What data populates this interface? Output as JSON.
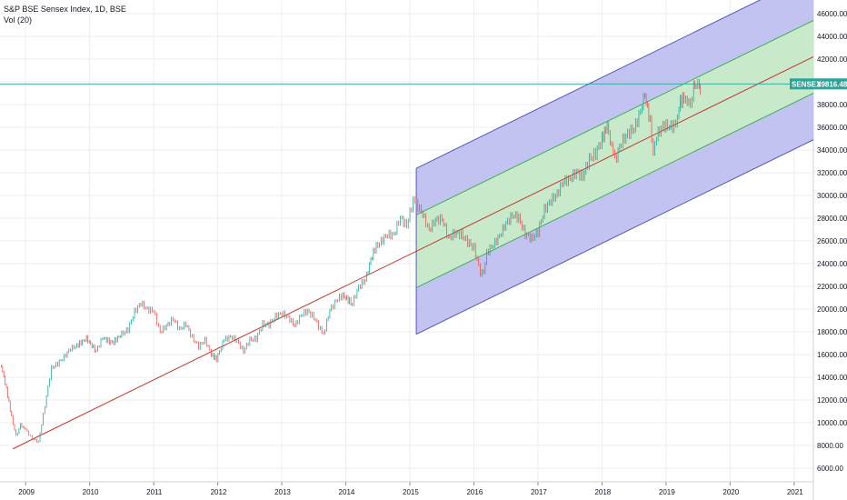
{
  "legend": {
    "title": "S&P BSE Sensex Index, 1D, BSE",
    "indicator": "Vol (20)"
  },
  "price_tag": {
    "symbol": "SENSEX",
    "value": "39816.48",
    "color": "#26a69a"
  },
  "colors": {
    "up": "#26a69a",
    "down": "#ef5350",
    "regression": "#c0392b",
    "outer_channel_fill": "#b8b8ee",
    "outer_channel_line": "#5555bb",
    "inner_channel_fill": "#c8ecc8",
    "inner_channel_line": "#3fae5a",
    "grid": "#eeeeee"
  },
  "chart_data": {
    "type": "line",
    "title": "S&P BSE Sensex Index, 1D, BSE",
    "xlabel": "",
    "ylabel": "",
    "x_ticks": [
      "2009",
      "2010",
      "2011",
      "2012",
      "2013",
      "2014",
      "2015",
      "2016",
      "2017",
      "2018",
      "2019",
      "2020",
      "2021"
    ],
    "y_ticks": [
      "6000.00",
      "8000.00",
      "10000.00",
      "12000.00",
      "14000.00",
      "16000.00",
      "18000.00",
      "20000.00",
      "22000.00",
      "24000.00",
      "26000.00",
      "28000.00",
      "30000.00",
      "32000.00",
      "34000.00",
      "36000.00",
      "38000.00",
      "40000.00",
      "42000.00",
      "44000.00",
      "46000.00"
    ],
    "ylim": [
      4800,
      47200
    ],
    "xlim": [
      2008.6,
      2021.3
    ],
    "grid": true,
    "series": [
      {
        "values": [
          [
            2008.62,
            15000
          ],
          [
            2008.7,
            13000
          ],
          [
            2008.78,
            10500
          ],
          [
            2008.85,
            8800
          ],
          [
            2008.92,
            9800
          ],
          [
            2009.0,
            9400
          ],
          [
            2009.1,
            8600
          ],
          [
            2009.2,
            8300
          ],
          [
            2009.3,
            11500
          ],
          [
            2009.4,
            14800
          ],
          [
            2009.5,
            15200
          ],
          [
            2009.6,
            15800
          ],
          [
            2009.7,
            16500
          ],
          [
            2009.8,
            16800
          ],
          [
            2009.95,
            17400
          ],
          [
            2010.1,
            16300
          ],
          [
            2010.2,
            17500
          ],
          [
            2010.35,
            17000
          ],
          [
            2010.5,
            17800
          ],
          [
            2010.6,
            18200
          ],
          [
            2010.7,
            19800
          ],
          [
            2010.8,
            20500
          ],
          [
            2010.9,
            20000
          ],
          [
            2011.0,
            19800
          ],
          [
            2011.1,
            18000
          ],
          [
            2011.2,
            18500
          ],
          [
            2011.3,
            19200
          ],
          [
            2011.4,
            18200
          ],
          [
            2011.5,
            18700
          ],
          [
            2011.6,
            17500
          ],
          [
            2011.7,
            16700
          ],
          [
            2011.8,
            17300
          ],
          [
            2011.9,
            16000
          ],
          [
            2011.98,
            15600
          ],
          [
            2012.1,
            17300
          ],
          [
            2012.2,
            17600
          ],
          [
            2012.3,
            17200
          ],
          [
            2012.4,
            16300
          ],
          [
            2012.5,
            17300
          ],
          [
            2012.6,
            17400
          ],
          [
            2012.7,
            18700
          ],
          [
            2012.8,
            18600
          ],
          [
            2012.9,
            19400
          ],
          [
            2013.0,
            19600
          ],
          [
            2013.1,
            19300
          ],
          [
            2013.2,
            18500
          ],
          [
            2013.3,
            19500
          ],
          [
            2013.4,
            19800
          ],
          [
            2013.5,
            19300
          ],
          [
            2013.6,
            18200
          ],
          [
            2013.65,
            17800
          ],
          [
            2013.75,
            19900
          ],
          [
            2013.85,
            20800
          ],
          [
            2013.95,
            21200
          ],
          [
            2014.1,
            20500
          ],
          [
            2014.2,
            22000
          ],
          [
            2014.3,
            22500
          ],
          [
            2014.37,
            24000
          ],
          [
            2014.45,
            25300
          ],
          [
            2014.55,
            26000
          ],
          [
            2014.65,
            26500
          ],
          [
            2014.75,
            26600
          ],
          [
            2014.85,
            28000
          ],
          [
            2014.95,
            27400
          ],
          [
            2015.05,
            29500
          ],
          [
            2015.1,
            29300
          ],
          [
            2015.2,
            28300
          ],
          [
            2015.3,
            27000
          ],
          [
            2015.4,
            27800
          ],
          [
            2015.5,
            28000
          ],
          [
            2015.6,
            26200
          ],
          [
            2015.7,
            26700
          ],
          [
            2015.8,
            26600
          ],
          [
            2015.9,
            25900
          ],
          [
            2016.0,
            25400
          ],
          [
            2016.1,
            23200
          ],
          [
            2016.15,
            23000
          ],
          [
            2016.2,
            25000
          ],
          [
            2016.3,
            25600
          ],
          [
            2016.4,
            26500
          ],
          [
            2016.5,
            27500
          ],
          [
            2016.6,
            28300
          ],
          [
            2016.7,
            28000
          ],
          [
            2016.8,
            26600
          ],
          [
            2016.9,
            26200
          ],
          [
            2017.0,
            26800
          ],
          [
            2017.1,
            28800
          ],
          [
            2017.2,
            29500
          ],
          [
            2017.3,
            30200
          ],
          [
            2017.4,
            31200
          ],
          [
            2017.5,
            31500
          ],
          [
            2017.6,
            32000
          ],
          [
            2017.7,
            31700
          ],
          [
            2017.8,
            33200
          ],
          [
            2017.9,
            33700
          ],
          [
            2018.0,
            35000
          ],
          [
            2018.08,
            36100
          ],
          [
            2018.15,
            34300
          ],
          [
            2018.2,
            33100
          ],
          [
            2018.3,
            34600
          ],
          [
            2018.4,
            35500
          ],
          [
            2018.5,
            35800
          ],
          [
            2018.6,
            37500
          ],
          [
            2018.67,
            38800
          ],
          [
            2018.75,
            36500
          ],
          [
            2018.8,
            34000
          ],
          [
            2018.85,
            35200
          ],
          [
            2018.95,
            36200
          ],
          [
            2019.05,
            36000
          ],
          [
            2019.15,
            36300
          ],
          [
            2019.2,
            38000
          ],
          [
            2019.28,
            38700
          ],
          [
            2019.33,
            38300
          ],
          [
            2019.38,
            37500
          ],
          [
            2019.43,
            39800
          ],
          [
            2019.47,
            39900
          ],
          [
            2019.52,
            39200
          ],
          [
            2019.55,
            39816.48
          ]
        ]
      }
    ]
  }
}
